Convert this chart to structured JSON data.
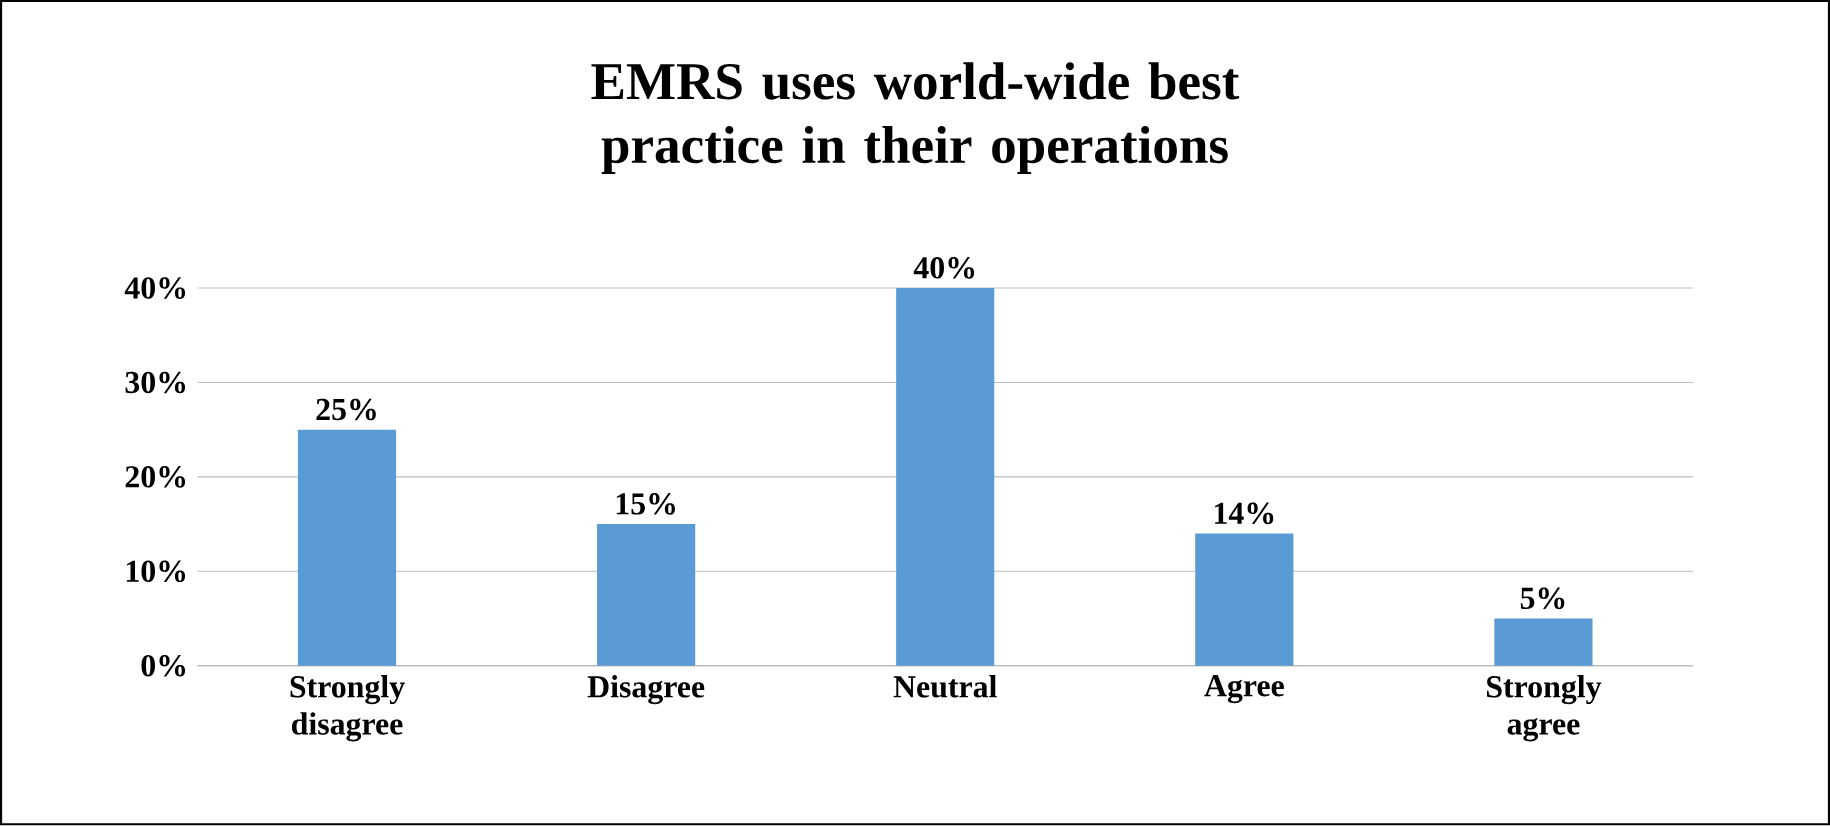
{
  "chart_data": {
    "type": "bar",
    "title": "EMRS uses world-wide best practice in their operations",
    "categories": [
      "Strongly disagree",
      "Disagree",
      "Neutral",
      "Agree",
      "Strongly agree"
    ],
    "values": [
      25,
      15,
      40,
      14,
      5
    ],
    "value_labels": [
      "25%",
      "15%",
      "40%",
      "14%",
      "5%"
    ],
    "color": "#5b9bd5",
    "ylim": [
      0,
      40
    ],
    "yticks": [
      {
        "value": 0,
        "label": "0%"
      },
      {
        "value": 10,
        "label": "10%"
      },
      {
        "value": 20,
        "label": "20%"
      },
      {
        "value": 30,
        "label": "30%"
      },
      {
        "value": 40,
        "label": "40%"
      }
    ],
    "grid": "y"
  }
}
